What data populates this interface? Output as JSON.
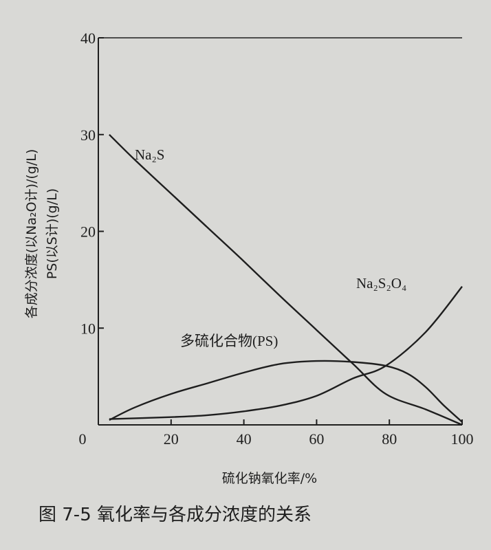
{
  "chart_data": {
    "type": "line",
    "caption": "图 7-5   氧化率与各成分浓度的关系",
    "xlabel": "硫化钠氧化率/%",
    "ylabel_line1": "各成分浓度(以Na₂O计)/(g/L)",
    "ylabel_line2": "PS(以S计)(g/L)",
    "xlim": [
      0,
      100
    ],
    "ylim": [
      0,
      40
    ],
    "x_ticks": [
      "0",
      "20",
      "40",
      "60",
      "80",
      "100"
    ],
    "y_ticks": [
      "10",
      "20",
      "30",
      "40"
    ],
    "grid": false,
    "series": [
      {
        "name": "Na₂S",
        "color": "#1e1e1e",
        "points": [
          [
            3,
            30
          ],
          [
            10,
            27.4
          ],
          [
            20,
            23.9
          ],
          [
            30,
            20.4
          ],
          [
            40,
            16.9
          ],
          [
            50,
            13.3
          ],
          [
            60,
            9.8
          ],
          [
            70,
            6.3
          ],
          [
            79,
            3.2
          ],
          [
            90,
            1.6
          ],
          [
            100,
            0
          ]
        ]
      },
      {
        "name": "Na₂S₂O₄",
        "color": "#1e1e1e",
        "points": [
          [
            3,
            0.6
          ],
          [
            20,
            0.8
          ],
          [
            30,
            1
          ],
          [
            40,
            1.4
          ],
          [
            50,
            2
          ],
          [
            60,
            3
          ],
          [
            70,
            4.8
          ],
          [
            79,
            6.1
          ],
          [
            90,
            9.6
          ],
          [
            100,
            14.3
          ]
        ]
      },
      {
        "name": "多硫化合物(PS)",
        "color": "#1e1e1e",
        "points": [
          [
            3,
            0.5
          ],
          [
            10,
            1.8
          ],
          [
            20,
            3.2
          ],
          [
            30,
            4.3
          ],
          [
            40,
            5.4
          ],
          [
            50,
            6.3
          ],
          [
            60,
            6.6
          ],
          [
            70,
            6.5
          ],
          [
            79,
            6.1
          ],
          [
            85,
            5.3
          ],
          [
            90,
            3.9
          ],
          [
            95,
            2
          ],
          [
            100,
            0.3
          ]
        ]
      }
    ]
  }
}
